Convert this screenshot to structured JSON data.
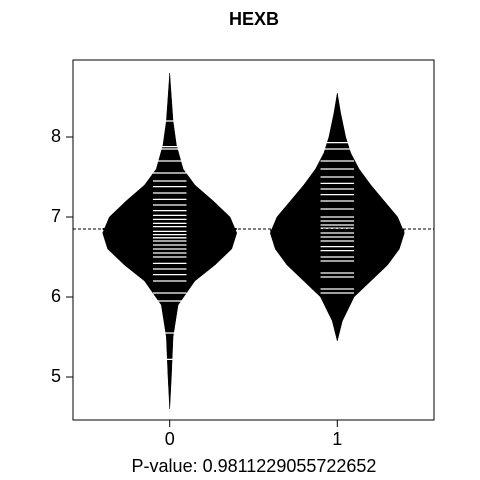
{
  "chart_data": {
    "type": "beanplot",
    "title": "HEXB",
    "xlabel": "P-value: 0.9811229055722652",
    "categories": [
      "0",
      "1"
    ],
    "xlim": [
      -0.577,
      1.577
    ],
    "ylim": [
      4.4625,
      8.9625
    ],
    "yticks": [
      5,
      6,
      7,
      8
    ],
    "color": "#000000",
    "line_color": "#ffffff",
    "overall_mean": 6.85,
    "groups": [
      {
        "mean": 6.85,
        "density_y": [
          4.6,
          5.0,
          5.5,
          5.9,
          6.2,
          6.4,
          6.6,
          6.8,
          7.0,
          7.2,
          7.4,
          7.6,
          7.9,
          8.2,
          8.5,
          8.8
        ],
        "density_w": [
          0,
          0.01,
          0.02,
          0.05,
          0.15,
          0.27,
          0.37,
          0.4,
          0.36,
          0.26,
          0.15,
          0.08,
          0.04,
          0.02,
          0.01,
          0
        ],
        "observations": [
          5.22,
          5.55,
          5.95,
          6.05,
          6.2,
          6.28,
          6.35,
          6.42,
          6.5,
          6.55,
          6.6,
          6.65,
          6.7,
          6.74,
          6.78,
          6.82,
          6.88,
          6.92,
          6.97,
          7.02,
          7.08,
          7.15,
          7.22,
          7.3,
          7.38,
          7.45,
          7.55,
          7.7,
          7.85,
          7.88,
          8.2
        ]
      },
      {
        "mean": 6.83,
        "density_y": [
          5.45,
          5.7,
          6.0,
          6.2,
          6.4,
          6.6,
          6.8,
          7.0,
          7.2,
          7.4,
          7.6,
          7.8,
          8.0,
          8.3,
          8.55
        ],
        "density_w": [
          0,
          0.03,
          0.1,
          0.2,
          0.3,
          0.37,
          0.4,
          0.36,
          0.28,
          0.2,
          0.13,
          0.08,
          0.05,
          0.02,
          0
        ],
        "observations": [
          6.05,
          6.1,
          6.25,
          6.3,
          6.45,
          6.5,
          6.58,
          6.63,
          6.7,
          6.75,
          6.8,
          6.86,
          6.9,
          6.95,
          7.0,
          7.1,
          7.2,
          7.28,
          7.35,
          7.42,
          7.5,
          7.6,
          7.7,
          7.85,
          7.93
        ]
      }
    ]
  }
}
